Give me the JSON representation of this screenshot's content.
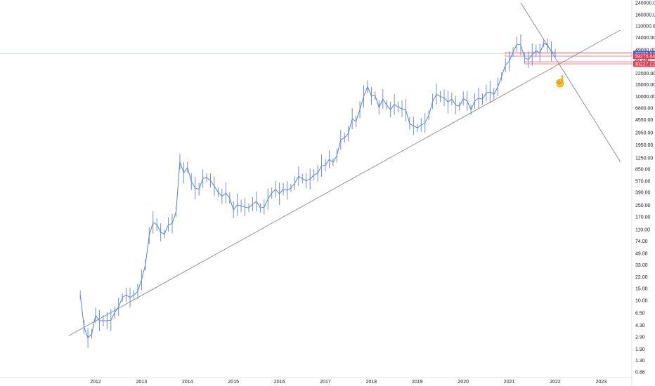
{
  "chart_data": {
    "type": "candlestick",
    "symbol": "",
    "scale": "log",
    "grid": false,
    "price_axis": {
      "side": "right",
      "tick_labels": [
        "240000.00",
        "160000.00",
        "110000.00",
        "74000.00",
        "49000.00",
        "33000.00",
        "22000.00",
        "15000.00",
        "10000.00",
        "6800.00",
        "4550.00",
        "2950.00",
        "1950.00",
        "1250.00",
        "850.00",
        "570.00",
        "390.00",
        "250.00",
        "170.00",
        "110.00",
        "74.00",
        "49.00",
        "33.00",
        "22.00",
        "15.00",
        "10.00",
        "6.50",
        "4.30",
        "2.90",
        "1.90",
        "1.30",
        "0.88"
      ]
    },
    "time_axis": {
      "tick_labels": [
        "2012",
        "2013",
        "2014",
        "2015",
        "2016",
        "2017",
        "2018",
        "2019",
        "2020",
        "2021",
        "2022",
        "2023"
      ]
    },
    "price_badges": [
      {
        "label": "42725.54",
        "sublabel": "2d 23h",
        "color": "#2962ff"
      },
      {
        "label": "39276.84",
        "color": "#f23645"
      },
      {
        "label": "30227.22",
        "color": "#f23645"
      }
    ],
    "series": [
      {
        "values": [
          [
            "2011-09",
            12
          ],
          [
            "2011-10",
            4
          ],
          [
            "2011-11",
            2.8
          ],
          [
            "2011-12",
            3.2
          ],
          [
            "2012-01",
            6
          ],
          [
            "2012-02",
            5
          ],
          [
            "2012-03",
            5
          ],
          [
            "2012-04",
            5
          ],
          [
            "2012-05",
            5.1
          ],
          [
            "2012-06",
            6.6
          ],
          [
            "2012-07",
            8
          ],
          [
            "2012-08",
            11
          ],
          [
            "2012-09",
            12
          ],
          [
            "2012-10",
            11
          ],
          [
            "2012-11",
            12
          ],
          [
            "2012-12",
            13.5
          ],
          [
            "2013-01",
            20
          ],
          [
            "2013-02",
            33
          ],
          [
            "2013-03",
            90
          ],
          [
            "2013-04",
            140
          ],
          [
            "2013-05",
            130
          ],
          [
            "2013-06",
            100
          ],
          [
            "2013-07",
            95
          ],
          [
            "2013-08",
            130
          ],
          [
            "2013-09",
            135
          ],
          [
            "2013-10",
            200
          ],
          [
            "2013-11",
            1100
          ],
          [
            "2013-12",
            750
          ],
          [
            "2014-01",
            900
          ],
          [
            "2014-02",
            560
          ],
          [
            "2014-03",
            450
          ],
          [
            "2014-04",
            430
          ],
          [
            "2014-05",
            620
          ],
          [
            "2014-06",
            640
          ],
          [
            "2014-07",
            580
          ],
          [
            "2014-08",
            480
          ],
          [
            "2014-09",
            390
          ],
          [
            "2014-10",
            340
          ],
          [
            "2014-11",
            380
          ],
          [
            "2014-12",
            320
          ],
          [
            "2015-01",
            215
          ],
          [
            "2015-02",
            255
          ],
          [
            "2015-03",
            245
          ],
          [
            "2015-04",
            235
          ],
          [
            "2015-05",
            230
          ],
          [
            "2015-06",
            260
          ],
          [
            "2015-07",
            285
          ],
          [
            "2015-08",
            230
          ],
          [
            "2015-09",
            235
          ],
          [
            "2015-10",
            310
          ],
          [
            "2015-11",
            380
          ],
          [
            "2015-12",
            430
          ],
          [
            "2016-01",
            370
          ],
          [
            "2016-02",
            435
          ],
          [
            "2016-03",
            415
          ],
          [
            "2016-04",
            450
          ],
          [
            "2016-05",
            530
          ],
          [
            "2016-06",
            670
          ],
          [
            "2016-07",
            620
          ],
          [
            "2016-08",
            575
          ],
          [
            "2016-09",
            610
          ],
          [
            "2016-10",
            700
          ],
          [
            "2016-11",
            740
          ],
          [
            "2016-12",
            960
          ],
          [
            "2017-01",
            970
          ],
          [
            "2017-02",
            1190
          ],
          [
            "2017-03",
            1080
          ],
          [
            "2017-04",
            1350
          ],
          [
            "2017-05",
            2300
          ],
          [
            "2017-06",
            2480
          ],
          [
            "2017-07",
            2870
          ],
          [
            "2017-08",
            4700
          ],
          [
            "2017-09",
            4300
          ],
          [
            "2017-10",
            6400
          ],
          [
            "2017-11",
            10000
          ],
          [
            "2017-12",
            14000
          ],
          [
            "2018-01",
            10200
          ],
          [
            "2018-02",
            10300
          ],
          [
            "2018-03",
            6900
          ],
          [
            "2018-04",
            9200
          ],
          [
            "2018-05",
            7500
          ],
          [
            "2018-06",
            6400
          ],
          [
            "2018-07",
            7700
          ],
          [
            "2018-08",
            7000
          ],
          [
            "2018-09",
            6600
          ],
          [
            "2018-10",
            6300
          ],
          [
            "2018-11",
            4000
          ],
          [
            "2018-12",
            3700
          ],
          [
            "2019-01",
            3450
          ],
          [
            "2019-02",
            3800
          ],
          [
            "2019-03",
            4100
          ],
          [
            "2019-04",
            5300
          ],
          [
            "2019-05",
            8500
          ],
          [
            "2019-06",
            10800
          ],
          [
            "2019-07",
            10000
          ],
          [
            "2019-08",
            9600
          ],
          [
            "2019-09",
            8300
          ],
          [
            "2019-10",
            9200
          ],
          [
            "2019-11",
            7500
          ],
          [
            "2019-12",
            7200
          ],
          [
            "2020-01",
            9350
          ],
          [
            "2020-02",
            8600
          ],
          [
            "2020-03",
            6400
          ],
          [
            "2020-04",
            8600
          ],
          [
            "2020-05",
            9450
          ],
          [
            "2020-06",
            9150
          ],
          [
            "2020-07",
            11300
          ],
          [
            "2020-08",
            11650
          ],
          [
            "2020-09",
            10800
          ],
          [
            "2020-10",
            13800
          ],
          [
            "2020-11",
            19700
          ],
          [
            "2020-12",
            29000
          ],
          [
            "2021-01",
            33100
          ],
          [
            "2021-02",
            45200
          ],
          [
            "2021-03",
            58900
          ],
          [
            "2021-04",
            57700
          ],
          [
            "2021-05",
            37300
          ],
          [
            "2021-06",
            35000
          ],
          [
            "2021-07",
            41500
          ],
          [
            "2021-08",
            47100
          ],
          [
            "2021-09",
            43800
          ],
          [
            "2021-10",
            61300
          ],
          [
            "2021-11",
            57000
          ],
          [
            "2021-12",
            46300
          ],
          [
            "2022-01",
            42725.54
          ]
        ]
      }
    ],
    "drawings": [
      {
        "type": "trendline",
        "from": [
          "2011-06",
          3.0
        ],
        "to": [
          "2023-06",
          95000
        ]
      },
      {
        "type": "trendline",
        "from": [
          "2021-04",
          240000
        ],
        "to": [
          "2023-06",
          1100
        ]
      },
      {
        "type": "zone",
        "y": [
          39276.84,
          44500
        ],
        "x_from": "2020-12"
      },
      {
        "type": "zone",
        "y": [
          30227.22,
          32500
        ],
        "x_from": "2021-05"
      }
    ]
  }
}
